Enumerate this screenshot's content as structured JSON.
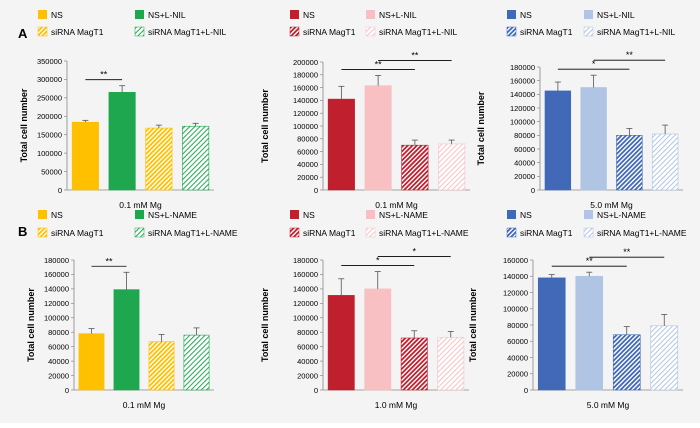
{
  "colors": {
    "background": "#f4f4f4",
    "yellow": "#ffc000",
    "green": "#1fa74f",
    "red": "#c01f2e",
    "pink": "#f9c0c4",
    "blue": "#4169b8",
    "lightblue": "#b0c4e3",
    "axis": "#888888",
    "errorbar": "#555555"
  },
  "chart_data": [
    {
      "panel_label": "A",
      "type": "bar",
      "categories": [
        "NS",
        "NS+L-NIL",
        "siRNA MagT1",
        "siRNA MagT1+L-NIL"
      ],
      "legend": [
        {
          "label": "NS",
          "style": "solid",
          "color": "#ffc000"
        },
        {
          "label": "NS+L-NIL",
          "style": "solid",
          "color": "#1fa74f"
        },
        {
          "label": "siRNA MagT1",
          "style": "dense-hatch",
          "color": "#ffc000"
        },
        {
          "label": "siRNA MagT1+L-NIL",
          "style": "light-hatch",
          "color": "#1fa74f"
        }
      ],
      "values": [
        184000,
        265000,
        168000,
        173000
      ],
      "errors": [
        5000,
        18000,
        8000,
        8000
      ],
      "ylabel": "Total cell number",
      "xlabel": "0.1 mM Mg",
      "ylim": [
        0,
        350000
      ],
      "yticks": [
        "0",
        "50000",
        "100000",
        "150000",
        "200000",
        "250000",
        "300000",
        "350000"
      ],
      "significance": [
        {
          "from": 0,
          "to": 1,
          "text": "**"
        }
      ]
    },
    {
      "type": "bar",
      "categories": [
        "NS",
        "NS+L-NIL",
        "siRNA MagT1",
        "siRNA MagT1+L-NIL"
      ],
      "legend": [
        {
          "label": "NS",
          "style": "solid",
          "color": "#c01f2e"
        },
        {
          "label": "NS+L-NIL",
          "style": "solid",
          "color": "#f9c0c4"
        },
        {
          "label": "siRNA MagT1",
          "style": "dense-hatch",
          "color": "#c01f2e"
        },
        {
          "label": "siRNA MagT1+L-NIL",
          "style": "light-hatch",
          "color": "#f9c0c4"
        }
      ],
      "values": [
        142000,
        163000,
        70000,
        72000
      ],
      "errors": [
        20000,
        16000,
        8000,
        6000
      ],
      "ylabel": "Total cell number",
      "xlabel": "0.1 mM Mg",
      "ylim": [
        0,
        200000
      ],
      "yticks": [
        "0",
        "20000",
        "40000",
        "60000",
        "80000",
        "100000",
        "120000",
        "140000",
        "160000",
        "180000",
        "200000"
      ],
      "significance": [
        {
          "from": 0,
          "to": 2,
          "text": "**"
        },
        {
          "from": 1,
          "to": 3,
          "text": "**"
        }
      ]
    },
    {
      "type": "bar",
      "categories": [
        "NS",
        "NS+L-NIL",
        "siRNA MagT1",
        "siRNA MagT1+L-NIL"
      ],
      "legend": [
        {
          "label": "NS",
          "style": "solid",
          "color": "#4169b8"
        },
        {
          "label": "NS+L-NIL",
          "style": "solid",
          "color": "#b0c4e3"
        },
        {
          "label": "siRNA MagT1",
          "style": "dense-hatch",
          "color": "#4169b8"
        },
        {
          "label": "siRNA MagT1+L-NIL",
          "style": "light-hatch",
          "color": "#b0c4e3"
        }
      ],
      "values": [
        145000,
        150000,
        80000,
        82000
      ],
      "errors": [
        13000,
        18000,
        10000,
        13000
      ],
      "ylabel": "Total cell number",
      "xlabel": "5.0 mM Mg",
      "ylim": [
        0,
        180000
      ],
      "yticks": [
        "0",
        "20000",
        "40000",
        "60000",
        "80000",
        "100000",
        "120000",
        "140000",
        "160000",
        "180000"
      ],
      "significance": [
        {
          "from": 0,
          "to": 2,
          "text": "*"
        },
        {
          "from": 1,
          "to": 3,
          "text": "**"
        }
      ]
    },
    {
      "panel_label": "B",
      "type": "bar",
      "categories": [
        "NS",
        "NS+L-NAME",
        "siRNA MagT1",
        "siRNA MagT1+L-NAME"
      ],
      "legend": [
        {
          "label": "NS",
          "style": "solid",
          "color": "#ffc000"
        },
        {
          "label": "NS+L-NAME",
          "style": "solid",
          "color": "#1fa74f"
        },
        {
          "label": "siRNA MagT1",
          "style": "dense-hatch",
          "color": "#ffc000"
        },
        {
          "label": "siRNA MagT1+L-NAME",
          "style": "light-hatch",
          "color": "#1fa74f"
        }
      ],
      "values": [
        78000,
        139000,
        67000,
        76000
      ],
      "errors": [
        7000,
        24000,
        10000,
        10000
      ],
      "ylabel": "Total cell number",
      "xlabel": "0.1 mM Mg",
      "ylim": [
        0,
        180000
      ],
      "yticks": [
        "0",
        "20000",
        "40000",
        "60000",
        "80000",
        "100000",
        "120000",
        "140000",
        "160000",
        "180000"
      ],
      "significance": [
        {
          "from": 0,
          "to": 1,
          "text": "**"
        }
      ]
    },
    {
      "type": "bar",
      "categories": [
        "NS",
        "NS+L-NAME",
        "siRNA MagT1",
        "siRNA MagT1+L-NAME"
      ],
      "legend": [
        {
          "label": "NS",
          "style": "solid",
          "color": "#c01f2e"
        },
        {
          "label": "NS+L-NAME",
          "style": "solid",
          "color": "#f9c0c4"
        },
        {
          "label": "siRNA MagT1",
          "style": "dense-hatch",
          "color": "#c01f2e"
        },
        {
          "label": "siRNA MagT1+L-NAME",
          "style": "light-hatch",
          "color": "#f9c0c4"
        }
      ],
      "values": [
        131000,
        140000,
        72000,
        73000
      ],
      "errors": [
        23000,
        24000,
        10000,
        8000
      ],
      "ylabel": "Total cell number",
      "xlabel": "1.0 mM Mg",
      "ylim": [
        0,
        180000
      ],
      "yticks": [
        "0",
        "20000",
        "40000",
        "60000",
        "80000",
        "100000",
        "120000",
        "140000",
        "160000",
        "180000"
      ],
      "significance": [
        {
          "from": 0,
          "to": 2,
          "text": "*"
        },
        {
          "from": 1,
          "to": 3,
          "text": "*"
        }
      ]
    },
    {
      "type": "bar",
      "categories": [
        "NS",
        "NS+L-NAME",
        "siRNA MagT1",
        "siRNA MagT1+L-NAME"
      ],
      "legend": [
        {
          "label": "NS",
          "style": "solid",
          "color": "#4169b8"
        },
        {
          "label": "NS+L-NAME",
          "style": "solid",
          "color": "#b0c4e3"
        },
        {
          "label": "siRNA MagT1",
          "style": "dense-hatch",
          "color": "#4169b8"
        },
        {
          "label": "siRNA MagT1+L-NAME",
          "style": "light-hatch",
          "color": "#b0c4e3"
        }
      ],
      "values": [
        138000,
        140000,
        68000,
        79000
      ],
      "errors": [
        4000,
        5000,
        10000,
        14000
      ],
      "ylabel": "Total cell number",
      "xlabel": "5.0 mM Mg",
      "ylim": [
        0,
        160000
      ],
      "yticks": [
        "0",
        "20000",
        "40000",
        "60000",
        "80000",
        "100000",
        "120000",
        "140000",
        "160000"
      ],
      "significance": [
        {
          "from": 0,
          "to": 2,
          "text": "**"
        },
        {
          "from": 1,
          "to": 3,
          "text": "**"
        }
      ]
    }
  ]
}
